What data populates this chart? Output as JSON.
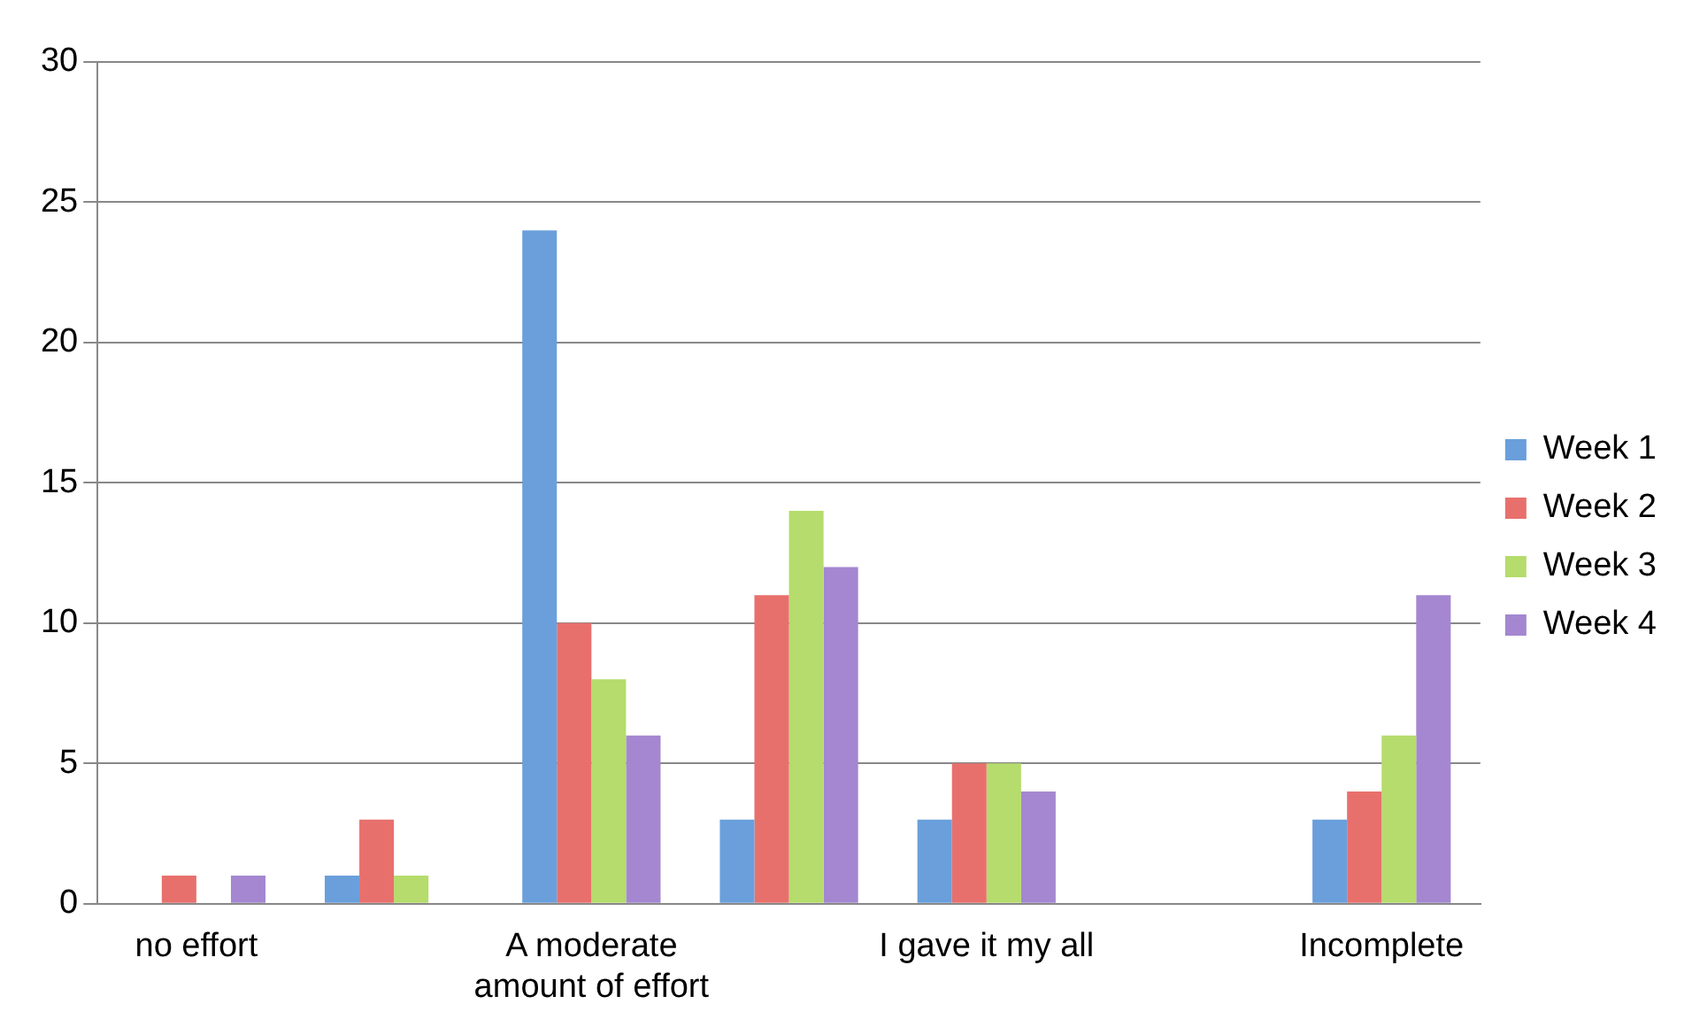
{
  "chart_data": {
    "type": "bar",
    "categories": [
      "no effort",
      null,
      "A moderate amount of effort",
      null,
      "I gave it my all",
      null,
      "Incomplete"
    ],
    "series": [
      {
        "name": "Week 1",
        "color": "#6a9fdc",
        "values": [
          0,
          1,
          24,
          3,
          3,
          0,
          3
        ]
      },
      {
        "name": "Week 2",
        "color": "#e8706c",
        "values": [
          1,
          3,
          10,
          11,
          5,
          0,
          4
        ]
      },
      {
        "name": "Week 3",
        "color": "#b5dc6c",
        "values": [
          0,
          1,
          8,
          14,
          5,
          0,
          6
        ]
      },
      {
        "name": "Week 4",
        "color": "#a487d0",
        "values": [
          1,
          0,
          6,
          12,
          4,
          0,
          11
        ]
      }
    ],
    "ylim": [
      0,
      30
    ],
    "yticks": [
      0,
      5,
      10,
      15,
      20,
      25,
      30
    ],
    "grid": "y",
    "legend": "right"
  }
}
